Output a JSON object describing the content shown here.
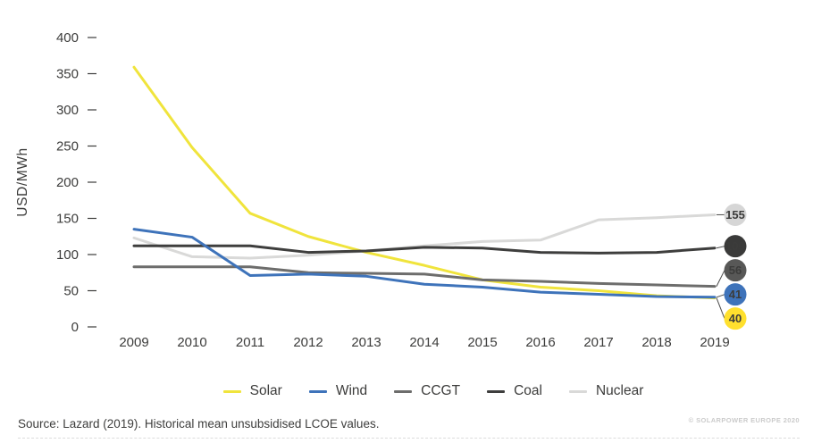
{
  "chart_data": {
    "type": "line",
    "title": "",
    "ylabel": "USD/MWh",
    "xlabel": "",
    "x": [
      "2009",
      "2010",
      "2011",
      "2012",
      "2013",
      "2014",
      "2015",
      "2016",
      "2017",
      "2018",
      "2019"
    ],
    "ylim": [
      0,
      400
    ],
    "yticks": [
      400,
      350,
      300,
      250,
      200,
      150,
      100,
      50,
      0
    ],
    "grid": false,
    "legend_position": "bottom",
    "series": [
      {
        "name": "Solar",
        "color": "#f0e43c",
        "values": [
          359,
          248,
          157,
          125,
          103,
          85,
          65,
          55,
          50,
          43,
          40
        ],
        "end_label": "40",
        "label_bg": "#ffe02e",
        "label_text": "#3c3c3b"
      },
      {
        "name": "Wind",
        "color": "#3e73ba",
        "values": [
          135,
          124,
          71,
          73,
          70,
          59,
          55,
          48,
          45,
          42,
          41
        ],
        "end_label": "41",
        "label_bg": "#3e73ba",
        "label_text": "#ffffff"
      },
      {
        "name": "CCGT",
        "color": "#6d6d6c",
        "values": [
          83,
          83,
          83,
          75,
          74,
          73,
          65,
          63,
          60,
          58,
          56
        ],
        "end_label": "56",
        "label_bg": "#585857",
        "label_text": "#ffffff"
      },
      {
        "name": "Coal",
        "color": "#3e3e3d",
        "values": [
          112,
          112,
          112,
          103,
          105,
          110,
          109,
          103,
          102,
          103,
          109
        ],
        "end_label": "109",
        "label_bg": "#3a3a39",
        "label_text": "#ffffff"
      },
      {
        "name": "Nuclear",
        "color": "#d9d9d8",
        "values": [
          123,
          97,
          95,
          99,
          105,
          112,
          118,
          120,
          148,
          151,
          155
        ],
        "end_label": "155",
        "label_bg": "#d6d6d6",
        "label_text": "#575756"
      }
    ]
  },
  "footer": {
    "source": "Source: Lazard (2019). Historical mean unsubsidised LCOE values.",
    "copyright": "© SOLARPOWER EUROPE 2020"
  }
}
